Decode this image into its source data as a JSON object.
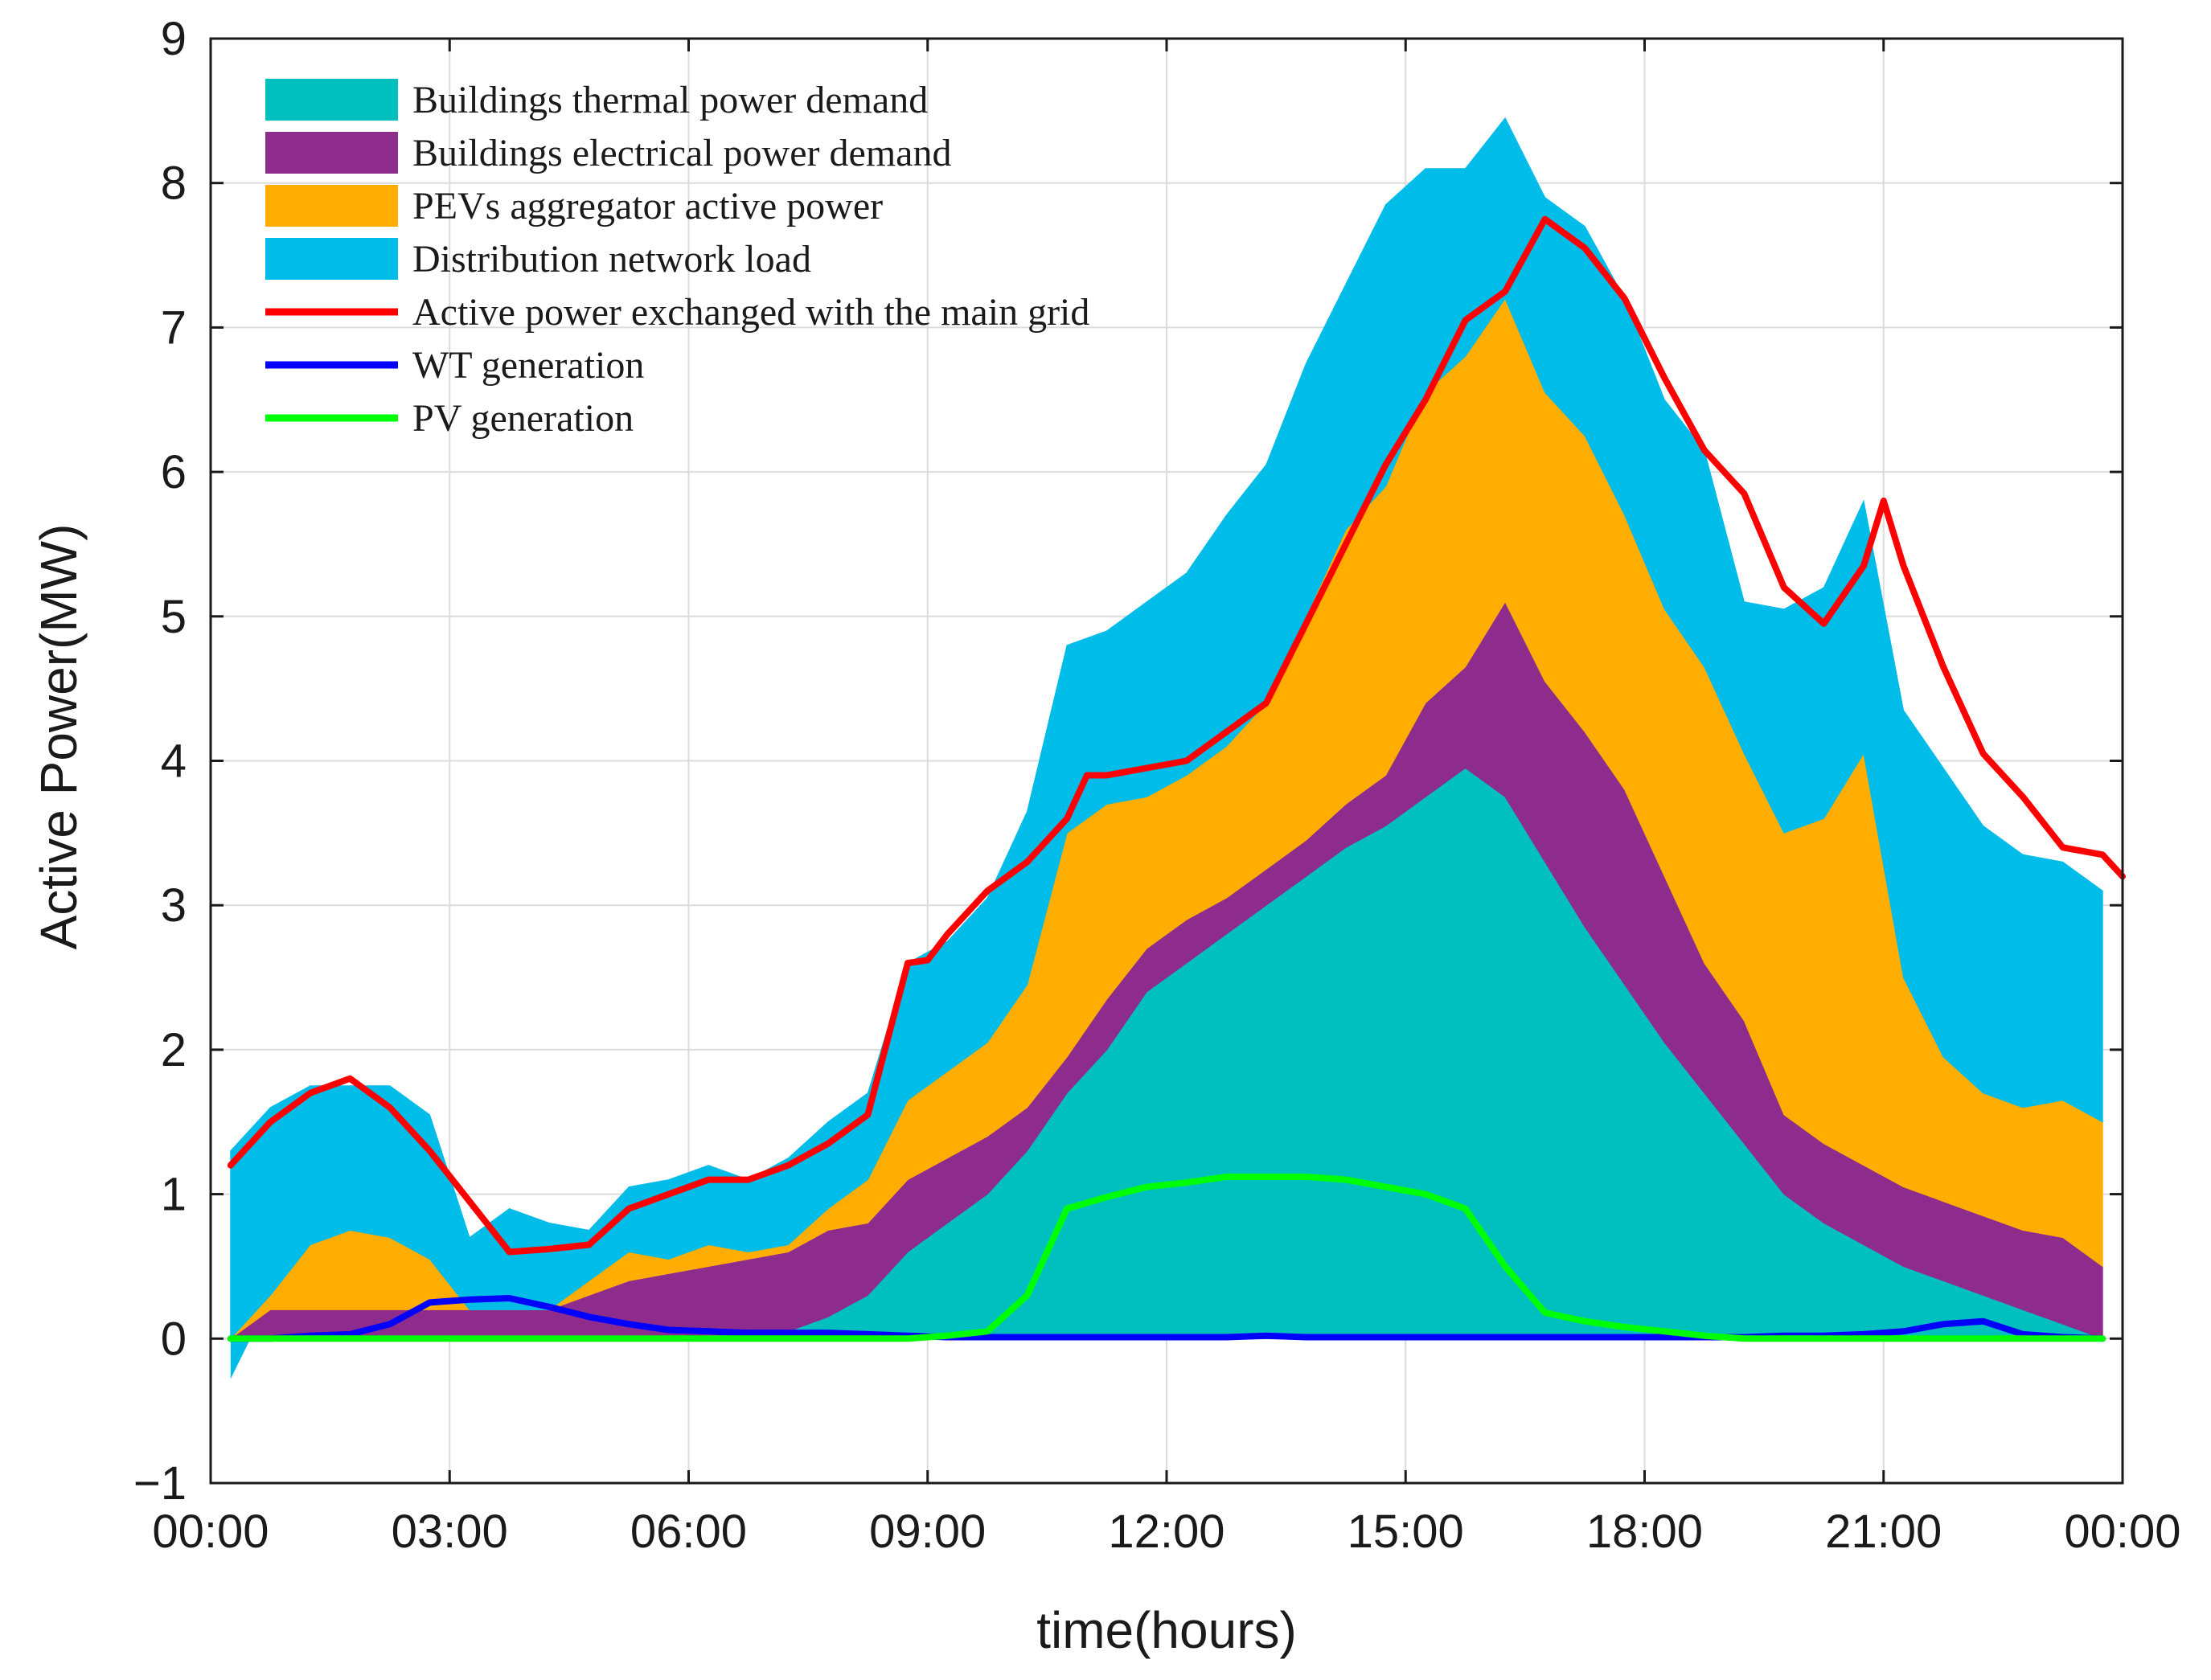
{
  "chart_data": {
    "type": "area",
    "title": "",
    "xlabel": "time(hours)",
    "ylabel": "Active Power(MW)",
    "xlim": [
      0,
      24
    ],
    "ylim": [
      -1,
      9
    ],
    "x_ticks": [
      0,
      3,
      6,
      9,
      12,
      15,
      18,
      21,
      24
    ],
    "x_tick_labels": [
      "00:00",
      "03:00",
      "06:00",
      "09:00",
      "12:00",
      "15:00",
      "18:00",
      "21:00",
      "00:00"
    ],
    "y_ticks": [
      -1,
      0,
      1,
      2,
      3,
      4,
      5,
      6,
      7,
      8,
      9
    ],
    "y_tick_labels": [
      "−1",
      "0",
      "1",
      "2",
      "3",
      "4",
      "5",
      "6",
      "7",
      "8",
      "9"
    ],
    "grid": true,
    "legend_position": "top-left",
    "x": [
      0.25,
      0.75,
      1.25,
      1.75,
      2.25,
      2.75,
      3.25,
      3.75,
      4.25,
      4.75,
      5.25,
      5.75,
      6.25,
      6.75,
      7.25,
      7.75,
      8.25,
      8.75,
      9.25,
      9.75,
      10.25,
      10.75,
      11.25,
      11.75,
      12.25,
      12.75,
      13.25,
      13.75,
      14.25,
      14.75,
      15.25,
      15.75,
      16.25,
      16.75,
      17.25,
      17.75,
      18.25,
      18.75,
      19.25,
      19.75,
      20.25,
      20.75,
      21.25,
      21.75,
      22.25,
      22.75,
      23.25,
      23.75
    ],
    "stacked_areas": [
      {
        "name": "Buildings thermal power demand",
        "color": "#00bfbf",
        "values": [
          0,
          0,
          0,
          0,
          0,
          0,
          0,
          0,
          0,
          0,
          0,
          0,
          0,
          0,
          0.05,
          0.15,
          0.3,
          0.6,
          0.8,
          1.0,
          1.3,
          1.7,
          2.0,
          2.4,
          2.6,
          2.8,
          3.0,
          3.2,
          3.4,
          3.55,
          3.75,
          3.95,
          3.75,
          3.3,
          2.85,
          2.45,
          2.05,
          1.7,
          1.35,
          1.0,
          0.8,
          0.65,
          0.5,
          0.4,
          0.3,
          0.2,
          0.1,
          0
        ]
      },
      {
        "name": "Buildings electrical power demand",
        "color": "#8e2c8e",
        "values": [
          0,
          0.2,
          0.2,
          0.2,
          0.2,
          0.2,
          0.2,
          0.2,
          0.2,
          0.3,
          0.4,
          0.45,
          0.5,
          0.55,
          0.55,
          0.6,
          0.5,
          0.5,
          0.45,
          0.4,
          0.3,
          0.25,
          0.35,
          0.3,
          0.3,
          0.25,
          0.25,
          0.25,
          0.3,
          0.35,
          0.65,
          0.7,
          1.35,
          1.25,
          1.35,
          1.35,
          1.15,
          0.9,
          0.85,
          0.55,
          0.55,
          0.55,
          0.55,
          0.55,
          0.55,
          0.55,
          0.6,
          0.5
        ]
      },
      {
        "name": "PEVs aggregator active power",
        "color": "#ffad00",
        "values": [
          0,
          0.1,
          0.45,
          0.55,
          0.5,
          0.35,
          0,
          0,
          0,
          0.1,
          0.2,
          0.1,
          0.15,
          0.05,
          0.05,
          0.15,
          0.3,
          0.55,
          0.6,
          0.65,
          0.85,
          1.55,
          1.35,
          1.05,
          1.0,
          1.05,
          1.15,
          1.55,
          1.9,
          2.0,
          2.15,
          2.15,
          2.1,
          2.0,
          2.05,
          1.9,
          1.85,
          2.05,
          1.85,
          1.95,
          2.25,
          2.85,
          1.45,
          1.0,
          0.85,
          0.85,
          0.95,
          1.0
        ]
      },
      {
        "name": "Distribution network load",
        "color": "#00bce8",
        "values": [
          1.3,
          1.3,
          1.1,
          1.0,
          1.05,
          1.0,
          0.5,
          0.7,
          0.6,
          0.35,
          0.45,
          0.55,
          0.55,
          0.5,
          0.6,
          0.6,
          0.6,
          0.95,
          0.9,
          1.0,
          1.2,
          1.3,
          1.2,
          1.35,
          1.4,
          1.6,
          1.65,
          1.75,
          1.7,
          1.95,
          1.55,
          1.3,
          1.25,
          1.35,
          1.45,
          1.5,
          1.45,
          1.5,
          1.05,
          1.55,
          1.6,
          1.75,
          1.85,
          2.0,
          1.85,
          1.75,
          1.65,
          1.6
        ]
      }
    ],
    "negative_tip": {
      "x": 0.25,
      "value": -0.28
    },
    "lines": [
      {
        "name": "Active power exchanged with the main grid",
        "color": "#ff0000",
        "x": [
          0.25,
          0.75,
          1.25,
          1.75,
          2.25,
          2.75,
          3.25,
          3.75,
          4.25,
          4.75,
          5.25,
          5.75,
          6.25,
          6.75,
          7.25,
          7.75,
          8.25,
          8.75,
          9.0,
          9.25,
          9.75,
          10.25,
          10.75,
          11.0,
          11.25,
          11.75,
          12.25,
          12.75,
          13.25,
          13.75,
          14.25,
          14.75,
          15.25,
          15.75,
          16.25,
          16.75,
          17.25,
          17.75,
          18.25,
          18.75,
          19.25,
          19.75,
          20.25,
          20.75,
          21.0,
          21.25,
          21.75,
          22.25,
          22.75,
          23.25,
          23.75,
          24.0
        ],
        "values": [
          1.2,
          1.5,
          1.7,
          1.8,
          1.6,
          1.3,
          0.95,
          0.6,
          0.62,
          0.65,
          0.9,
          1.0,
          1.1,
          1.1,
          1.2,
          1.35,
          1.55,
          2.6,
          2.62,
          2.8,
          3.1,
          3.3,
          3.6,
          3.9,
          3.9,
          3.95,
          4.0,
          4.2,
          4.4,
          4.95,
          5.5,
          6.05,
          6.5,
          7.05,
          7.25,
          7.75,
          7.55,
          7.2,
          6.65,
          6.15,
          5.85,
          5.2,
          4.95,
          5.35,
          5.8,
          5.35,
          4.65,
          4.05,
          3.75,
          3.4,
          3.35,
          3.2
        ]
      },
      {
        "name": "WT generation",
        "color": "#0000ff",
        "x": [
          0.25,
          0.75,
          1.25,
          1.75,
          2.25,
          2.75,
          3.25,
          3.75,
          4.25,
          4.75,
          5.25,
          5.75,
          6.25,
          6.75,
          7.25,
          7.75,
          8.25,
          8.75,
          9.25,
          9.75,
          10.25,
          10.75,
          11.25,
          11.75,
          12.25,
          12.75,
          13.25,
          13.75,
          14.25,
          14.75,
          15.25,
          15.75,
          16.25,
          16.75,
          17.25,
          17.75,
          18.25,
          18.75,
          19.25,
          19.75,
          20.25,
          20.75,
          21.25,
          21.75,
          22.25,
          22.75,
          23.25,
          23.75
        ],
        "values": [
          0,
          0,
          0.02,
          0.03,
          0.1,
          0.25,
          0.27,
          0.28,
          0.22,
          0.15,
          0.1,
          0.06,
          0.05,
          0.04,
          0.04,
          0.04,
          0.03,
          0.02,
          0.01,
          0.01,
          0.01,
          0.01,
          0.01,
          0.01,
          0.01,
          0.01,
          0.02,
          0.01,
          0.01,
          0.01,
          0.01,
          0.01,
          0.01,
          0.01,
          0.01,
          0.01,
          0.01,
          0.01,
          0.01,
          0.02,
          0.02,
          0.03,
          0.05,
          0.1,
          0.12,
          0.03,
          0.01,
          0
        ]
      },
      {
        "name": "PV generation",
        "color": "#00ff00",
        "x": [
          0.25,
          0.75,
          1.25,
          1.75,
          2.25,
          2.75,
          3.25,
          3.75,
          4.25,
          4.75,
          5.25,
          5.75,
          6.25,
          6.75,
          7.25,
          7.75,
          8.25,
          8.75,
          9.25,
          9.75,
          10.25,
          10.75,
          11.25,
          11.75,
          12.25,
          12.75,
          13.25,
          13.75,
          14.25,
          14.75,
          15.25,
          15.75,
          16.25,
          16.75,
          17.25,
          17.75,
          18.25,
          18.75,
          19.25,
          19.75,
          20.25,
          20.75,
          21.25,
          21.75,
          22.25,
          22.75,
          23.25,
          23.75
        ],
        "values": [
          0,
          0,
          0,
          0,
          0,
          0,
          0,
          0,
          0,
          0,
          0,
          0,
          0,
          0,
          0,
          0,
          0,
          0,
          0.02,
          0.05,
          0.3,
          0.9,
          0.98,
          1.05,
          1.08,
          1.12,
          1.12,
          1.12,
          1.1,
          1.05,
          1.0,
          0.9,
          0.5,
          0.18,
          0.12,
          0.08,
          0.05,
          0.02,
          0,
          0,
          0,
          0,
          0,
          0,
          0,
          0,
          0,
          0
        ]
      }
    ],
    "legend": [
      {
        "label": "Buildings thermal power demand",
        "kind": "patch",
        "color": "#00bfbf"
      },
      {
        "label": "Buildings electrical power demand",
        "kind": "patch",
        "color": "#8e2c8e"
      },
      {
        "label": "PEVs aggregator active power",
        "kind": "patch",
        "color": "#ffad00"
      },
      {
        "label": "Distribution network load",
        "kind": "patch",
        "color": "#00bce8"
      },
      {
        "label": "Active power exchanged with the main grid",
        "kind": "line",
        "color": "#ff0000"
      },
      {
        "label": "WT generation",
        "kind": "line",
        "color": "#0000ff"
      },
      {
        "label": "PV generation",
        "kind": "line",
        "color": "#00ff00"
      }
    ]
  }
}
